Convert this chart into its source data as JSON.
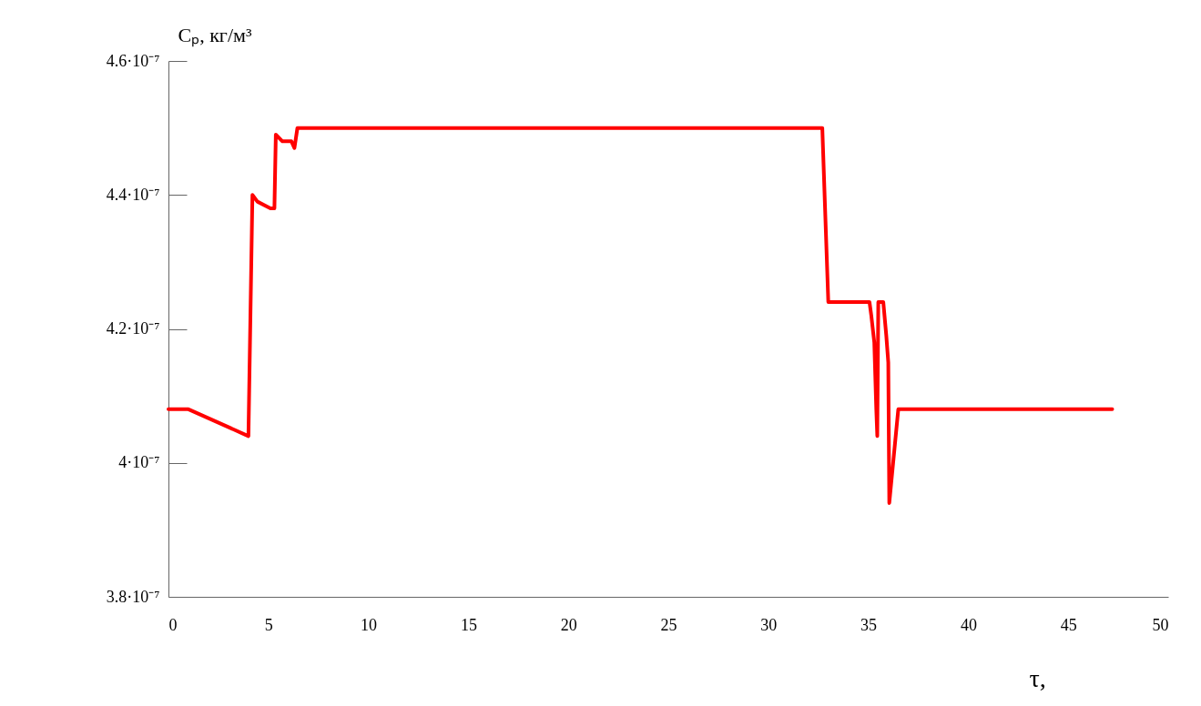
{
  "chart_data": {
    "type": "line",
    "xlabel": "τ,",
    "ylabel": "Cₚ, кг/м³",
    "x": [
      0,
      1.0,
      4.0,
      4.2,
      4.45,
      5.1,
      5.3,
      5.37,
      5.7,
      6.15,
      6.3,
      6.45,
      32.7,
      33.0,
      35.06,
      35.15,
      35.3,
      35.4,
      35.45,
      35.5,
      35.75,
      35.9,
      36.0,
      36.05,
      36.5,
      47.2
    ],
    "values": [
      4.08e-07,
      4.08e-07,
      4.04e-07,
      4.4e-07,
      4.39e-07,
      4.38e-07,
      4.38e-07,
      4.49e-07,
      4.48e-07,
      4.48e-07,
      4.47e-07,
      4.5e-07,
      4.5e-07,
      4.24e-07,
      4.24e-07,
      4.22e-07,
      4.18e-07,
      4.08e-07,
      4.04e-07,
      4.24e-07,
      4.24e-07,
      4.19e-07,
      4.15e-07,
      3.94e-07,
      4.08e-07,
      4.08e-07
    ],
    "color": "#ff0000",
    "marker": "none",
    "line_style": "solid",
    "xlim": [
      0,
      50
    ],
    "xticks": [
      0,
      5,
      10,
      15,
      20,
      25,
      30,
      35,
      40,
      45,
      50
    ],
    "ylim": [
      3.8e-07,
      4.6e-07
    ],
    "yticks": [
      {
        "value": 3.8e-07,
        "label": "3.8·10⁻⁷"
      },
      {
        "value": 4e-07,
        "label": "4·10⁻⁷"
      },
      {
        "value": 4.2e-07,
        "label": "4.2·10⁻⁷"
      },
      {
        "value": 4.4e-07,
        "label": "4.4·10⁻⁷"
      },
      {
        "value": 4.6e-07,
        "label": "4.6·10⁻⁷"
      }
    ]
  }
}
